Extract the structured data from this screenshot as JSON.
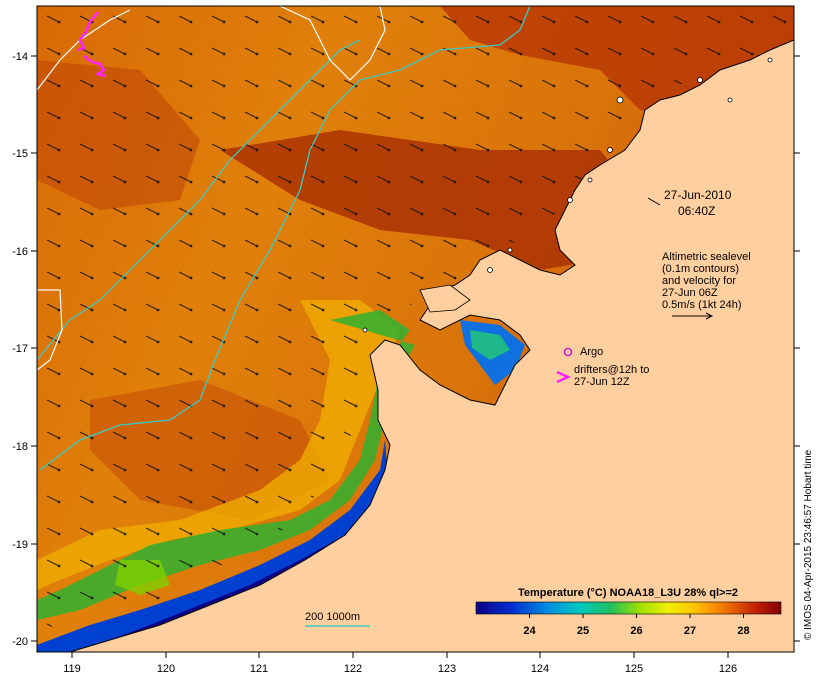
{
  "colors": {
    "land": "#ffcf9f",
    "frame": "#000000",
    "contour_cyan": "#3fc9c0",
    "contour_white": "#ffffff",
    "drifter_magenta": "#ff22ff",
    "argo_magenta": "#cc22cc"
  },
  "axes": {
    "lon_ticks": [
      "119",
      "120",
      "121",
      "122",
      "123",
      "124",
      "125",
      "126"
    ],
    "lat_ticks": [
      "-14",
      "-15",
      "-16",
      "-17",
      "-18",
      "-19",
      "-20"
    ]
  },
  "labels": {
    "date": "27-Jun-2010",
    "time": "06:40Z",
    "alt_line1": "Altimetric sealevel",
    "alt_line2": "(0.1m contours)",
    "alt_line3": "and velocity for",
    "alt_line4": "27-Jun 06Z",
    "alt_line5": "0.5m/s (1kt 24h)",
    "argo": "Argo",
    "drifters_line1": "drifters@12h to",
    "drifters_line2": "27-Jun 12Z",
    "depth_scale": "200  1000m",
    "credit": "© IMOS 04-Apr-2015 23:46:57 Hobart time"
  },
  "colorbar": {
    "title": "Temperature (°C) NOAA18_L3U 28% ql>=2",
    "ticks": [
      "24",
      "25",
      "26",
      "27",
      "28"
    ],
    "range": [
      23.0,
      28.7
    ]
  }
}
